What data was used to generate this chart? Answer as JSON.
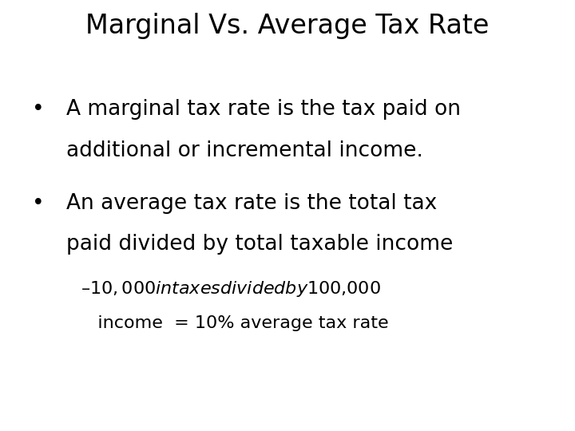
{
  "title": "Marginal Vs. Average Tax Rate",
  "background_color": "#ffffff",
  "text_color": "#000000",
  "title_fontsize": 24,
  "body_fontsize": 19,
  "sub_fontsize": 16,
  "bullet1_line1": "A marginal tax rate is the tax paid on",
  "bullet1_line2": "additional or incremental income.",
  "bullet2_line1": "An average tax rate is the total tax",
  "bullet2_line2": "paid divided by total taxable income",
  "sub_line1": "–$10,000 in taxes divided by $100,000",
  "sub_line2": "   income  = 10% average tax rate",
  "font_family": "DejaVu Sans"
}
